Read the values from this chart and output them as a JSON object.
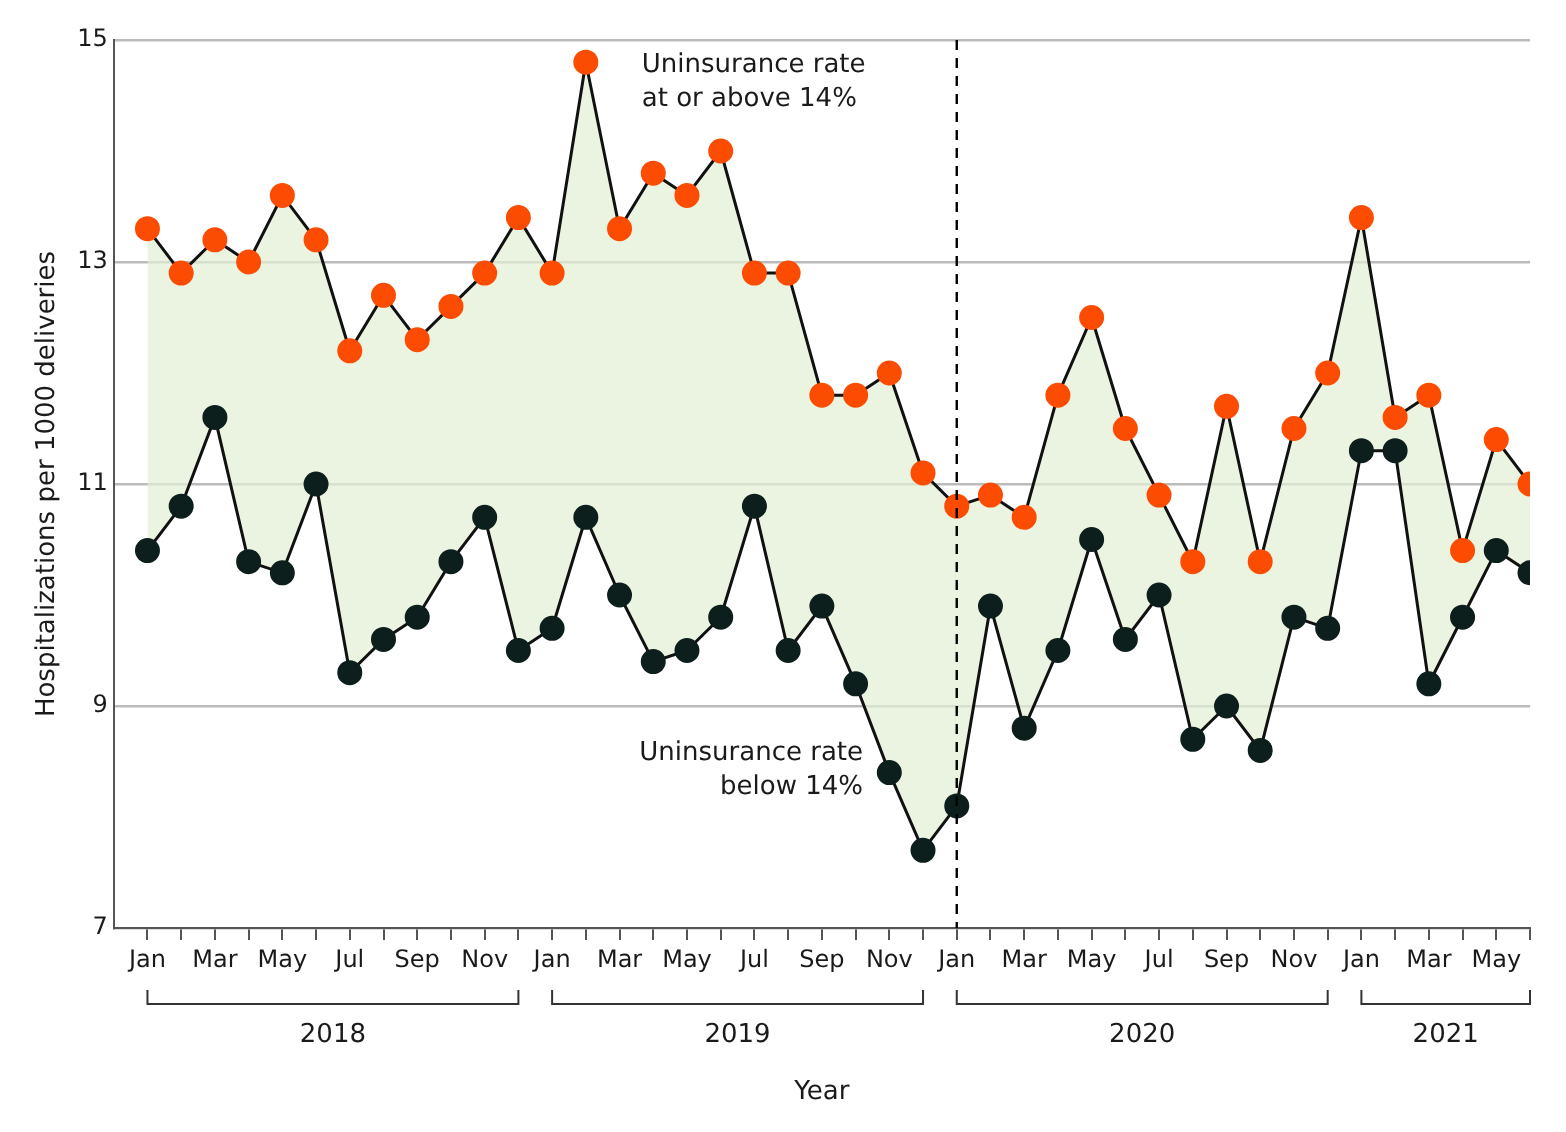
{
  "chart_data": {
    "type": "line",
    "xlabel": "Year",
    "ylabel": "Hospitalizations per 1000 deliveries",
    "x": [
      "2018-01",
      "2018-02",
      "2018-03",
      "2018-04",
      "2018-05",
      "2018-06",
      "2018-07",
      "2018-08",
      "2018-09",
      "2018-10",
      "2018-11",
      "2018-12",
      "2019-01",
      "2019-02",
      "2019-03",
      "2019-04",
      "2019-05",
      "2019-06",
      "2019-07",
      "2019-08",
      "2019-09",
      "2019-10",
      "2019-11",
      "2019-12",
      "2020-01",
      "2020-02",
      "2020-03",
      "2020-04",
      "2020-05",
      "2020-06",
      "2020-07",
      "2020-08",
      "2020-09",
      "2020-10",
      "2020-11",
      "2020-12",
      "2021-01",
      "2021-02",
      "2021-03",
      "2021-04",
      "2021-05",
      "2021-06"
    ],
    "series": [
      {
        "name": "Uninsurance rate at or above 14%",
        "type": "area",
        "color": "#fc4c02",
        "values": [
          13.3,
          12.9,
          13.2,
          13.0,
          13.6,
          13.2,
          12.2,
          12.7,
          12.3,
          12.6,
          12.9,
          13.4,
          12.9,
          14.8,
          13.3,
          13.8,
          13.6,
          14.0,
          12.9,
          12.9,
          11.8,
          11.8,
          12.0,
          11.1,
          10.8,
          10.9,
          10.7,
          11.8,
          12.5,
          11.5,
          10.9,
          10.3,
          11.7,
          10.3,
          11.5,
          12.0,
          13.4,
          11.6,
          11.8,
          10.4,
          11.4,
          11.0
        ]
      },
      {
        "name": "Uninsurance rate below 14%",
        "color": "#0c1f1c",
        "values": [
          10.4,
          10.8,
          11.6,
          10.3,
          10.2,
          11.0,
          9.3,
          9.6,
          9.8,
          10.3,
          10.7,
          9.5,
          9.7,
          10.7,
          10.0,
          9.4,
          9.5,
          9.8,
          10.8,
          9.5,
          9.9,
          9.2,
          8.4,
          7.7,
          8.1,
          9.9,
          8.8,
          9.5,
          10.5,
          9.6,
          10.0,
          8.7,
          9.0,
          8.6,
          9.8,
          9.7,
          11.3,
          11.3,
          9.2,
          9.8,
          10.4,
          10.2
        ]
      }
    ],
    "xlim": [
      "2017-12",
      "2021-06"
    ],
    "xticks": [
      {
        "value": "2018-01",
        "label": "Jan"
      },
      {
        "value": "2018-02",
        "label": null
      },
      {
        "value": "2018-03",
        "label": "Mar"
      },
      {
        "value": "2018-04",
        "label": null
      },
      {
        "value": "2018-05",
        "label": "May"
      },
      {
        "value": "2018-06",
        "label": null
      },
      {
        "value": "2018-07",
        "label": "Jul"
      },
      {
        "value": "2018-08",
        "label": null
      },
      {
        "value": "2018-09",
        "label": "Sep"
      },
      {
        "value": "2018-10",
        "label": null
      },
      {
        "value": "2018-11",
        "label": "Nov"
      },
      {
        "value": "2018-12",
        "label": null
      },
      {
        "value": "2019-01",
        "label": "Jan"
      },
      {
        "value": "2019-02",
        "label": null
      },
      {
        "value": "2019-03",
        "label": "Mar"
      },
      {
        "value": "2019-04",
        "label": null
      },
      {
        "value": "2019-05",
        "label": "May"
      },
      {
        "value": "2019-06",
        "label": null
      },
      {
        "value": "2019-07",
        "label": "Jul"
      },
      {
        "value": "2019-08",
        "label": null
      },
      {
        "value": "2019-09",
        "label": "Sep"
      },
      {
        "value": "2019-10",
        "label": null
      },
      {
        "value": "2019-11",
        "label": "Nov"
      },
      {
        "value": "2019-12",
        "label": null
      },
      {
        "value": "2020-01",
        "label": "Jan"
      },
      {
        "value": "2020-02",
        "label": null
      },
      {
        "value": "2020-03",
        "label": "Mar"
      },
      {
        "value": "2020-04",
        "label": null
      },
      {
        "value": "2020-05",
        "label": "May"
      },
      {
        "value": "2020-06",
        "label": null
      },
      {
        "value": "2020-07",
        "label": "Jul"
      },
      {
        "value": "2020-08",
        "label": null
      },
      {
        "value": "2020-09",
        "label": "Sep"
      },
      {
        "value": "2020-10",
        "label": null
      },
      {
        "value": "2020-11",
        "label": "Nov"
      },
      {
        "value": "2020-12",
        "label": null
      },
      {
        "value": "2021-01",
        "label": "Jan"
      },
      {
        "value": "2021-02",
        "label": null
      },
      {
        "value": "2021-03",
        "label": "Mar"
      },
      {
        "value": "2021-04",
        "label": null
      },
      {
        "value": "2021-05",
        "label": "May"
      },
      {
        "value": "2021-06",
        "label": null
      }
    ],
    "ylim": [
      7,
      15
    ],
    "yticks": [
      7,
      9,
      11,
      13,
      15
    ],
    "grid": "y",
    "legend": false,
    "marker": "circle",
    "line_style": "solid",
    "ref_lines": [
      {
        "axis": "x",
        "value": "2020-01",
        "line_style": "dashed",
        "color": "#000000"
      }
    ],
    "annotations": [
      "2018",
      "2019",
      "2020",
      "2021"
    ]
  }
}
